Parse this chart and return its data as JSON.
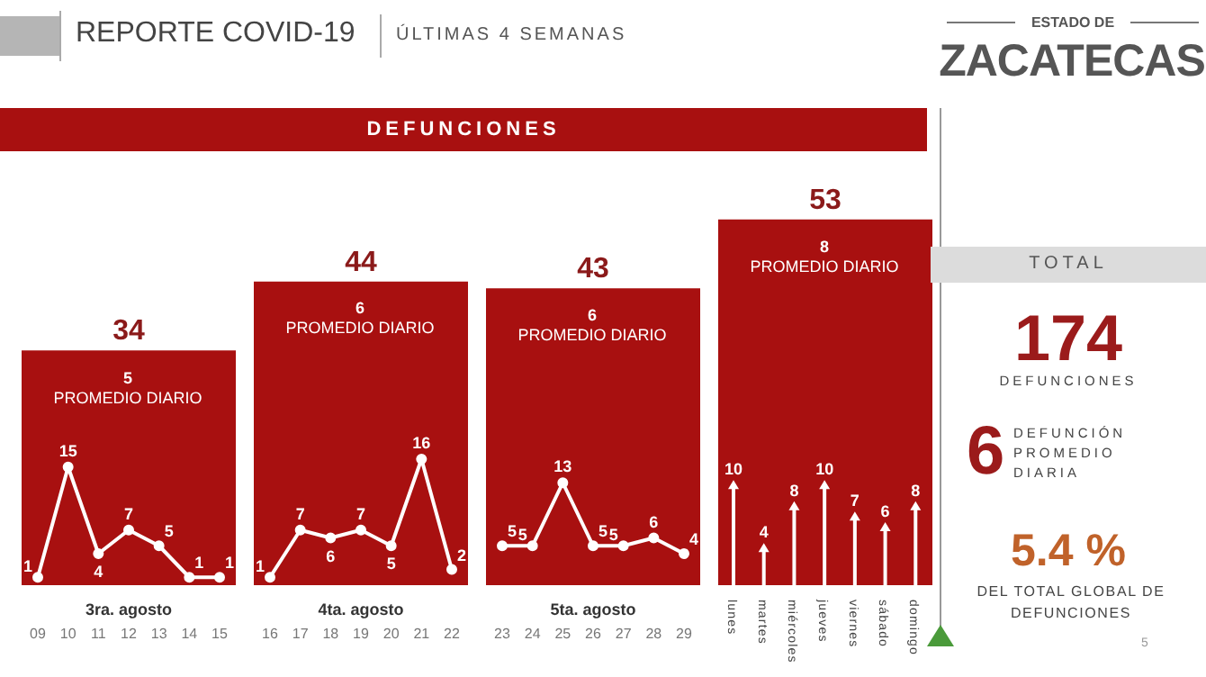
{
  "chart_data": [
    {
      "type": "bar",
      "title": "REPORTE COVID-19",
      "subtitle": "ÚLTIMAS 4 SEMANAS",
      "annotations": [
        "DEFUNCIONES",
        "ESTADO DE",
        "ZACATECAS"
      ],
      "categories": [
        "3ra. agosto",
        "4ta. agosto",
        "5ta. agosto",
        null
      ],
      "values": [
        34,
        44,
        43,
        53
      ],
      "color": "#a81010",
      "tick_labels": "x",
      "data_labels": true
    },
    {
      "type": "line",
      "annotations": [
        "5",
        "PROMEDIO DIARIO"
      ],
      "categories": [
        "09",
        "10",
        "11",
        "12",
        "13",
        "14",
        "15"
      ],
      "values": [
        1,
        15,
        4,
        7,
        5,
        1,
        1
      ],
      "color": "#ffffff",
      "tick_labels": "x",
      "data_labels": true,
      "marker": "circle"
    },
    {
      "type": "line",
      "annotations": [
        "6",
        "PROMEDIO DIARIO"
      ],
      "categories": [
        "16",
        "17",
        "18",
        "19",
        "20",
        "21",
        "22"
      ],
      "values": [
        1,
        7,
        6,
        7,
        5,
        16,
        2
      ],
      "color": "#ffffff",
      "tick_labels": "x",
      "data_labels": true,
      "marker": "circle"
    },
    {
      "type": "line",
      "annotations": [
        "6",
        "PROMEDIO DIARIO"
      ],
      "categories": [
        "23",
        "24",
        "25",
        "26",
        "27",
        "28",
        "29"
      ],
      "values": [
        5,
        5,
        13,
        5,
        5,
        6,
        4
      ],
      "color": "#ffffff",
      "tick_labels": "x",
      "data_labels": true,
      "marker": "circle"
    },
    {
      "type": "lollipop",
      "annotations": [
        "8",
        "PROMEDIO DIARIO"
      ],
      "categories": [
        "lunes",
        "martes",
        "miércoles",
        "jueves",
        "viernes",
        "sábado",
        "domingo"
      ],
      "values": [
        10,
        4,
        8,
        10,
        7,
        6,
        8
      ],
      "color": "#ffffff",
      "tick_labels": "x",
      "data_labels": true
    },
    {
      "type": "other",
      "title": "TOTAL",
      "annotations": [
        "174",
        "DEFUNCIONES",
        "6",
        "DEFUNCIÓN PROMEDIO DIARIA",
        "5.4 %",
        "DEL TOTAL GLOBAL DE DEFUNCIONES",
        "5"
      ]
    }
  ]
}
